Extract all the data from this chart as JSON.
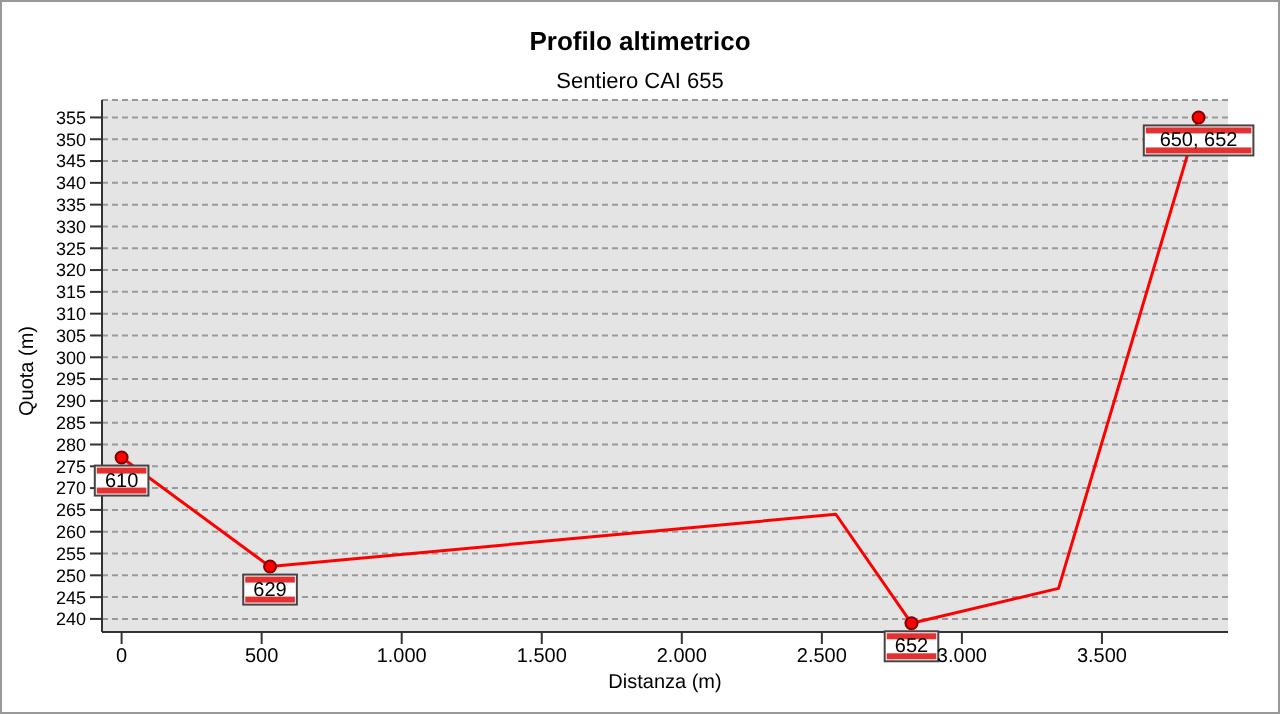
{
  "chart_data": {
    "type": "line",
    "title": "Profilo altimetrico",
    "subtitle": "Sentiero CAI 655",
    "xlabel": "Distanza (m)",
    "ylabel": "Quota (m)",
    "x": [
      0,
      530,
      2550,
      2820,
      3345,
      3845
    ],
    "series": [
      {
        "color": "#ff0000",
        "values": [
          277,
          252,
          264,
          239,
          247,
          355
        ]
      }
    ],
    "xlim": [
      -70,
      3950
    ],
    "xticks": [
      0,
      500,
      {
        "value": 1000,
        "label": "1.000"
      },
      {
        "value": 1500,
        "label": "1.500"
      },
      {
        "value": 2000,
        "label": "2.000"
      },
      {
        "value": 2500,
        "label": "2.500"
      },
      {
        "value": 3000,
        "label": "3.000"
      },
      {
        "value": 3500,
        "label": "3.500"
      }
    ],
    "ylim": [
      237,
      359
    ],
    "yticks": [
      240,
      245,
      250,
      255,
      260,
      265,
      270,
      275,
      280,
      285,
      290,
      295,
      300,
      305,
      310,
      315,
      320,
      325,
      330,
      335,
      340,
      345,
      350,
      355
    ],
    "grid": "y",
    "legend": false,
    "marker": "circle",
    "line_style": "solid",
    "annotations": [
      {
        "text": "610",
        "x": 0,
        "y": 277
      },
      {
        "text": "629",
        "x": 530,
        "y": 252
      },
      {
        "text": "652",
        "x": 2820,
        "y": 239
      },
      {
        "text": "650, 652",
        "x": 3845,
        "y": 355
      }
    ]
  }
}
